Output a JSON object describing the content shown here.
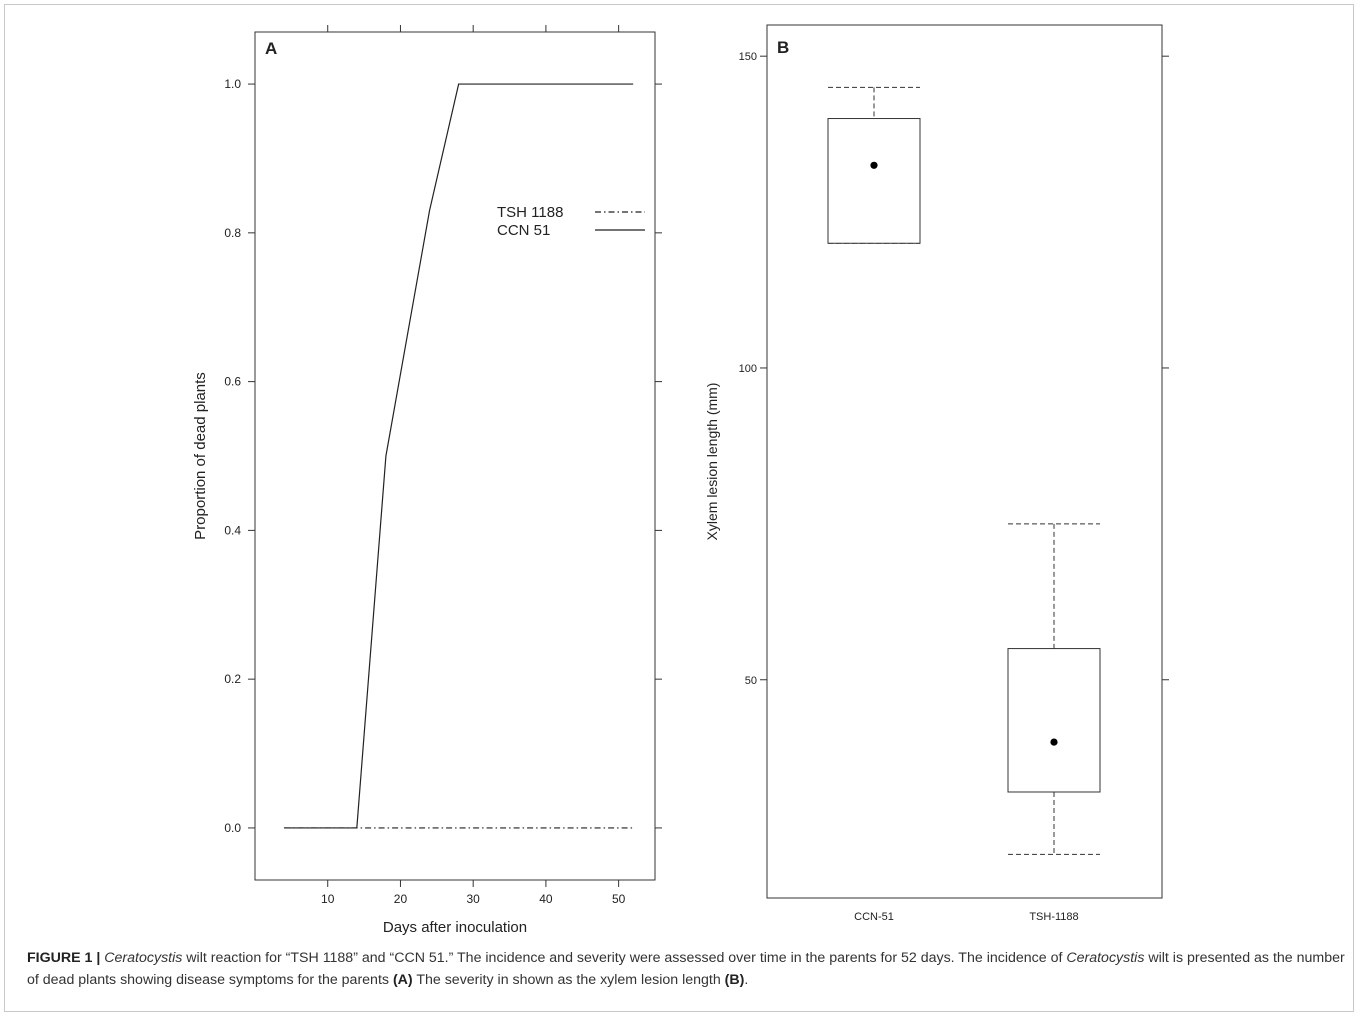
{
  "figure": {
    "panel_a_label": "A",
    "panel_b_label": "B"
  },
  "caption": {
    "label": "FIGURE 1 |",
    "part1_italic": "Ceratocystis",
    "part2": " wilt reaction for “TSH 1188” and “CCN 51.” The incidence and severity were assessed over time in the parents for 52 days. The incidence of ",
    "part3_italic": "Ceratocystis",
    "part4": " wilt is presented as the number of dead plants showing disease symptoms for the parents ",
    "part5_bold": "(A)",
    "part6": " The severity in shown as the xylem lesion length ",
    "part7_bold": "(B)",
    "part8": "."
  },
  "chart_data": [
    {
      "type": "line",
      "panel": "A",
      "xlabel": "Days after inoculation",
      "ylabel": "Proportion of dead plants",
      "xlim": [
        0,
        55
      ],
      "ylim": [
        -0.07,
        1.07
      ],
      "xticks": [
        10,
        20,
        30,
        40,
        50
      ],
      "yticks": [
        0.0,
        0.2,
        0.4,
        0.6,
        0.8,
        1.0
      ],
      "ytick_labels": [
        "0.0",
        "0.2",
        "0.4",
        "0.6",
        "0.8",
        "1.0"
      ],
      "legend": {
        "position": "upper-right"
      },
      "series": [
        {
          "name": "TSH 1188",
          "style": "dash-dot",
          "x": [
            4,
            52
          ],
          "y": [
            0.0,
            0.0
          ]
        },
        {
          "name": "CCN 51",
          "style": "solid",
          "x": [
            4,
            14,
            18,
            24,
            28,
            52
          ],
          "y": [
            0.0,
            0.0,
            0.5,
            0.83,
            1.0,
            1.0
          ]
        }
      ],
      "grid": false
    },
    {
      "type": "box",
      "panel": "B",
      "ylabel": "Xylem lesion length (mm)",
      "categories": [
        "CCN-51",
        "TSH-1188"
      ],
      "ylim": [
        15,
        155
      ],
      "yticks": [
        50,
        100,
        150
      ],
      "boxes": [
        {
          "category": "CCN-51",
          "whisker_low": 120,
          "q1": 120,
          "q3": 140,
          "whisker_high": 145,
          "mean": 132.5
        },
        {
          "category": "TSH-1188",
          "whisker_low": 22,
          "q1": 32,
          "q3": 55,
          "whisker_high": 75,
          "mean": 40
        }
      ],
      "grid": false
    }
  ]
}
